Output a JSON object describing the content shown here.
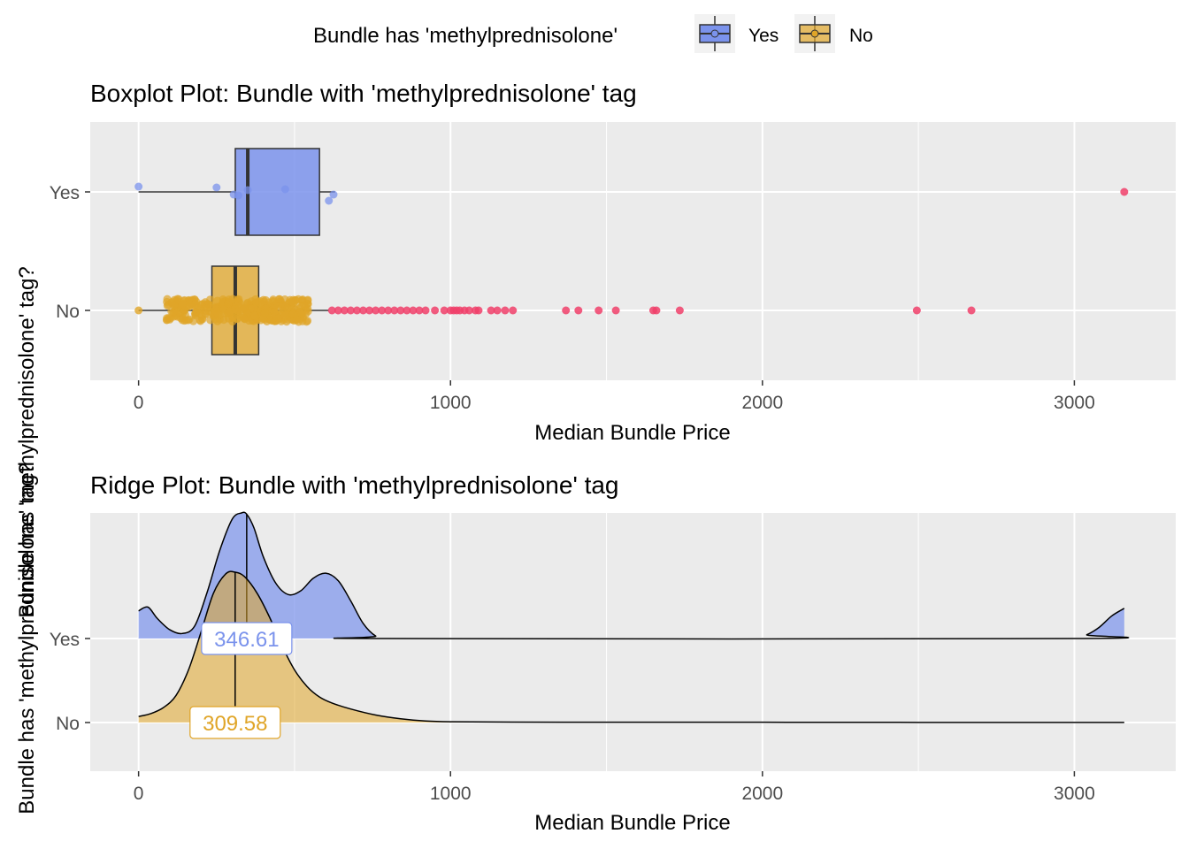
{
  "legend": {
    "title": "Bundle has 'methylprednisolone'",
    "items": [
      {
        "label": "Yes",
        "color": "#7B93EC"
      },
      {
        "label": "No",
        "color": "#E0A528"
      }
    ]
  },
  "colors": {
    "panel_bg": "#EBEBEB",
    "grid": "#FFFFFF",
    "yes_fill": "#7B93EC",
    "no_fill": "#E0A528",
    "outlier": "#F0406A",
    "text_axis": "#4D4D4D"
  },
  "chart_data": [
    {
      "type": "boxplot",
      "title": "Boxplot Plot: Bundle with 'methylprednisolone' tag",
      "xlabel": "Median Bundle Price",
      "ylabel": "Bundle has 'methylprednisolone' tag?",
      "xlim": [
        -155,
        3325
      ],
      "xticks": [
        0,
        1000,
        2000,
        3000
      ],
      "categories": [
        "No",
        "Yes"
      ],
      "boxes": [
        {
          "name": "Yes",
          "whisker_low": 0,
          "q1": 310,
          "median": 350,
          "q3": 580,
          "whisker_high": 630,
          "points": [
            0,
            250,
            305,
            320,
            350,
            470,
            610,
            625
          ],
          "outliers": [
            3160
          ]
        },
        {
          "name": "No",
          "whisker_low": 0,
          "q1": 235,
          "median": 310,
          "q3": 385,
          "whisker_high": 610,
          "jitter_range": [
            90,
            545
          ],
          "low_points": [
            0
          ],
          "outliers": [
            620,
            640,
            660,
            680,
            700,
            720,
            740,
            760,
            780,
            800,
            820,
            840,
            860,
            880,
            900,
            920,
            950,
            980,
            1000,
            1010,
            1020,
            1030,
            1045,
            1060,
            1080,
            1090,
            1130,
            1150,
            1175,
            1200,
            1370,
            1410,
            1475,
            1530,
            1650,
            1660,
            1735,
            2495,
            2670
          ]
        }
      ]
    },
    {
      "type": "ridgeline",
      "title": "Ridge Plot: Bundle with 'methylprednisolone' tag",
      "xlabel": "Median Bundle Price",
      "ylabel": "Bundle has 'methylprednisolone' tag?",
      "xlim": [
        -155,
        3325
      ],
      "xticks": [
        0,
        1000,
        2000,
        3000
      ],
      "categories": [
        "No",
        "Yes"
      ],
      "series": [
        {
          "name": "Yes",
          "median": 346.61,
          "median_label": "346.61",
          "x": [
            0,
            30,
            60,
            100,
            140,
            180,
            220,
            260,
            300,
            330,
            346.61,
            370,
            400,
            440,
            480,
            520,
            560,
            600,
            640,
            680,
            720,
            760,
            800,
            3000,
            3040,
            3080,
            3120,
            3160
          ],
          "density": [
            0.22,
            0.25,
            0.16,
            0.07,
            0.04,
            0.1,
            0.37,
            0.7,
            0.95,
            1.0,
            0.99,
            0.88,
            0.65,
            0.44,
            0.35,
            0.38,
            0.48,
            0.52,
            0.46,
            0.3,
            0.12,
            0.02,
            0.0,
            0.0,
            0.03,
            0.09,
            0.18,
            0.24
          ]
        },
        {
          "name": "No",
          "median": 309.58,
          "median_label": "309.58",
          "x": [
            0,
            40,
            80,
            120,
            160,
            200,
            240,
            280,
            309.58,
            340,
            380,
            420,
            460,
            500,
            540,
            580,
            620,
            680,
            760,
            840,
            920,
            1000,
            1200,
            1600,
            2000,
            2500,
            3000,
            3160
          ],
          "density": [
            0.04,
            0.06,
            0.1,
            0.18,
            0.35,
            0.6,
            0.86,
            0.99,
            1.0,
            0.97,
            0.86,
            0.7,
            0.51,
            0.35,
            0.24,
            0.17,
            0.13,
            0.09,
            0.05,
            0.025,
            0.01,
            0.005,
            0.003,
            0.002,
            0.002,
            0.001,
            0.001,
            0.001
          ]
        }
      ]
    }
  ]
}
